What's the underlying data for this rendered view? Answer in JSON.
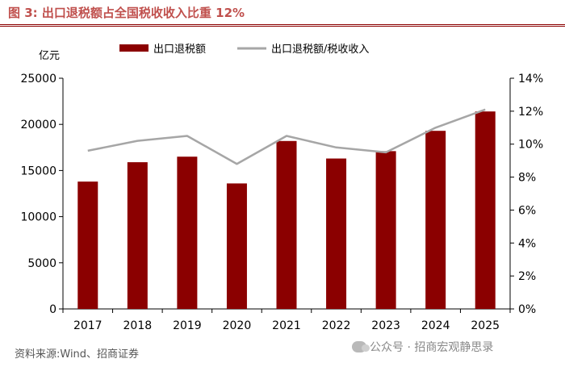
{
  "title": {
    "prefix": "图 3:",
    "text": "出口退税额占全国税收收入比重 12%",
    "color": "#c0504d"
  },
  "source": "资料来源:Wind、招商证券",
  "watermark": "公众号 · 招商宏观静思录",
  "colors": {
    "bar": "#8b0000",
    "line": "#a6a6a6",
    "rule": "#8b0000"
  },
  "chart_data": {
    "type": "bar",
    "categories": [
      "2017",
      "2018",
      "2019",
      "2020",
      "2021",
      "2022",
      "2023",
      "2024",
      "2025"
    ],
    "series": [
      {
        "name": "出口退税额",
        "type": "bar",
        "axis": "left",
        "values": [
          13800,
          15900,
          16500,
          13600,
          18200,
          16300,
          17100,
          19300,
          21400
        ]
      },
      {
        "name": "出口退税额/税收收入",
        "type": "line",
        "axis": "right",
        "values": [
          9.6,
          10.2,
          10.5,
          8.8,
          10.5,
          9.8,
          9.5,
          11.0,
          12.1
        ]
      }
    ],
    "y_left": {
      "unit_label": "亿元",
      "range": [
        0,
        25000
      ],
      "ticks": [
        "0",
        "5000",
        "10000",
        "15000",
        "20000",
        "25000"
      ]
    },
    "y_right": {
      "range": [
        0,
        14
      ],
      "ticks": [
        "0%",
        "2%",
        "4%",
        "6%",
        "8%",
        "10%",
        "12%",
        "14%"
      ]
    },
    "grid": false,
    "legend_position": "top-center"
  }
}
